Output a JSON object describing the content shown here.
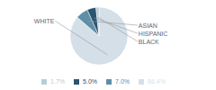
{
  "chart_data": {
    "type": "pie",
    "categories": [
      "WHITE",
      "ASIAN",
      "HISPANIC",
      "BLACK"
    ],
    "values": [
      86.4,
      7.0,
      5.0,
      1.7
    ],
    "value_labels": [
      "86.4%",
      "7.0%",
      "5.0%",
      "1.7%"
    ],
    "colors": [
      "#d4dfe8",
      "#5e8fa8",
      "#2b5470",
      "#b8cdd9"
    ],
    "legend": "bottom"
  }
}
